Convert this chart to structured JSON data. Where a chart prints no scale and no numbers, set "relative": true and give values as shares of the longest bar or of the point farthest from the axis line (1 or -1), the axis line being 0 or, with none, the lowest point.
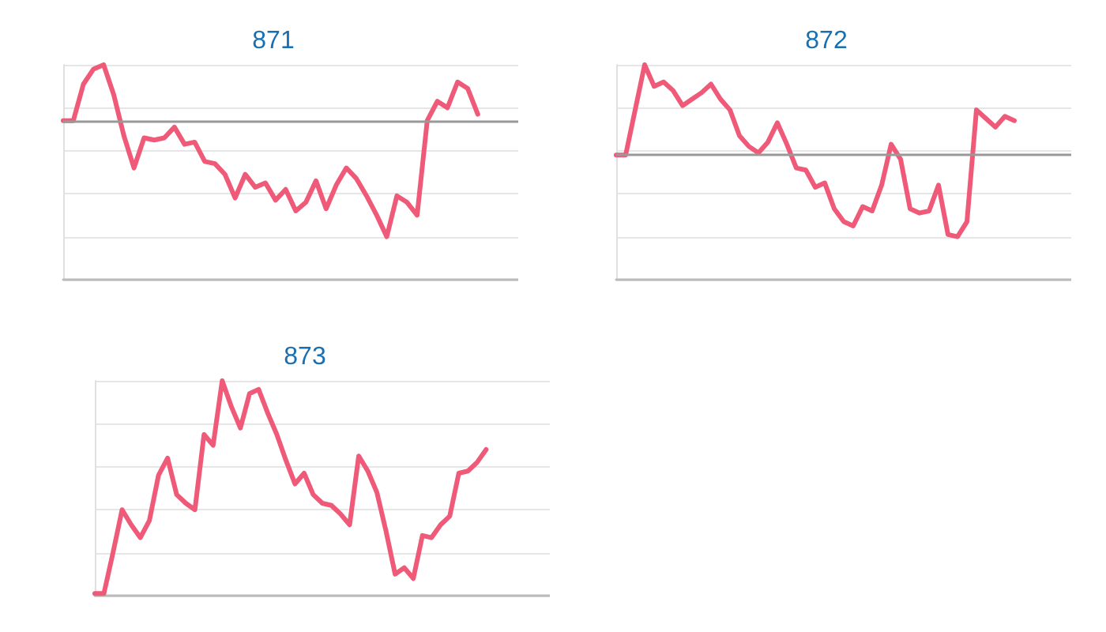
{
  "chart_data": [
    {
      "type": "line",
      "title": "871",
      "relative": true,
      "grid": "y",
      "line_style": "solid",
      "categories": [
        null,
        null,
        null,
        null,
        null,
        null,
        null,
        null,
        null,
        null,
        null,
        null,
        null,
        null,
        null,
        null,
        null,
        null,
        null,
        null,
        null,
        null,
        null,
        null,
        null,
        null,
        null,
        null,
        null,
        null,
        null,
        null,
        null,
        null,
        null,
        null,
        null,
        null,
        null,
        null,
        null,
        null,
        null,
        null,
        null,
        null
      ],
      "series": [
        {
          "color": "#ef5a78",
          "values": [
            0.74,
            0.74,
            0.91,
            0.98,
            1,
            0.86,
            0.67,
            0.52,
            0.66,
            0.65,
            0.66,
            0.71,
            0.63,
            0.64,
            0.55,
            0.54,
            0.49,
            0.38,
            0.49,
            0.43,
            0.45,
            0.37,
            0.42,
            0.32,
            0.36,
            0.46,
            0.33,
            0.44,
            0.52,
            0.47,
            0.39,
            0.3,
            0.2,
            0.39,
            0.36,
            0.3,
            0.74,
            0.83,
            0.8,
            0.92,
            0.89,
            0.77,
            null,
            null,
            null,
            null
          ]
        }
      ],
      "ref_lines": [
        {
          "axis": "y",
          "value": 0.74,
          "color": "#999999"
        }
      ]
    },
    {
      "type": "line",
      "title": "872",
      "relative": true,
      "grid": "y",
      "line_style": "solid",
      "categories": [
        null,
        null,
        null,
        null,
        null,
        null,
        null,
        null,
        null,
        null,
        null,
        null,
        null,
        null,
        null,
        null,
        null,
        null,
        null,
        null,
        null,
        null,
        null,
        null,
        null,
        null,
        null,
        null,
        null,
        null,
        null,
        null,
        null,
        null,
        null,
        null,
        null,
        null,
        null,
        null,
        null,
        null,
        null,
        null,
        null,
        null,
        null,
        null,
        null
      ],
      "series": [
        {
          "color": "#ef5a78",
          "values": [
            0.58,
            0.58,
            0.79,
            1,
            0.9,
            0.92,
            0.88,
            0.81,
            0.84,
            0.87,
            0.91,
            0.84,
            0.79,
            0.67,
            0.62,
            0.59,
            0.64,
            0.73,
            0.63,
            0.52,
            0.51,
            0.43,
            0.45,
            0.33,
            0.27,
            0.25,
            0.34,
            0.32,
            0.44,
            0.63,
            0.56,
            0.33,
            0.31,
            0.32,
            0.44,
            0.21,
            0.2,
            0.27,
            0.79,
            0.75,
            0.71,
            0.76,
            0.74,
            null,
            null,
            null,
            null,
            null,
            null
          ]
        }
      ],
      "ref_lines": [
        {
          "axis": "y",
          "value": 0.58,
          "color": "#999999"
        }
      ]
    },
    {
      "type": "line",
      "title": "873",
      "relative": true,
      "grid": "y",
      "line_style": "solid",
      "categories": [
        null,
        null,
        null,
        null,
        null,
        null,
        null,
        null,
        null,
        null,
        null,
        null,
        null,
        null,
        null,
        null,
        null,
        null,
        null,
        null,
        null,
        null,
        null,
        null,
        null,
        null,
        null,
        null,
        null,
        null,
        null,
        null,
        null,
        null,
        null,
        null,
        null,
        null,
        null,
        null,
        null,
        null,
        null,
        null,
        null,
        null,
        null,
        null,
        null,
        null,
        null
      ],
      "series": [
        {
          "color": "#ef5a78",
          "values": [
            0.01,
            0.01,
            0.2,
            0.4,
            0.33,
            0.27,
            0.35,
            0.56,
            0.64,
            0.47,
            0.43,
            0.4,
            0.75,
            0.7,
            1,
            0.88,
            0.78,
            0.94,
            0.96,
            0.85,
            0.75,
            0.63,
            0.52,
            0.57,
            0.47,
            0.43,
            0.42,
            0.38,
            0.33,
            0.65,
            0.58,
            0.48,
            0.3,
            0.1,
            0.13,
            0.08,
            0.28,
            0.27,
            0.33,
            0.37,
            0.57,
            0.58,
            0.62,
            0.68,
            null,
            null,
            null,
            null,
            null,
            null,
            null
          ]
        }
      ]
    }
  ]
}
